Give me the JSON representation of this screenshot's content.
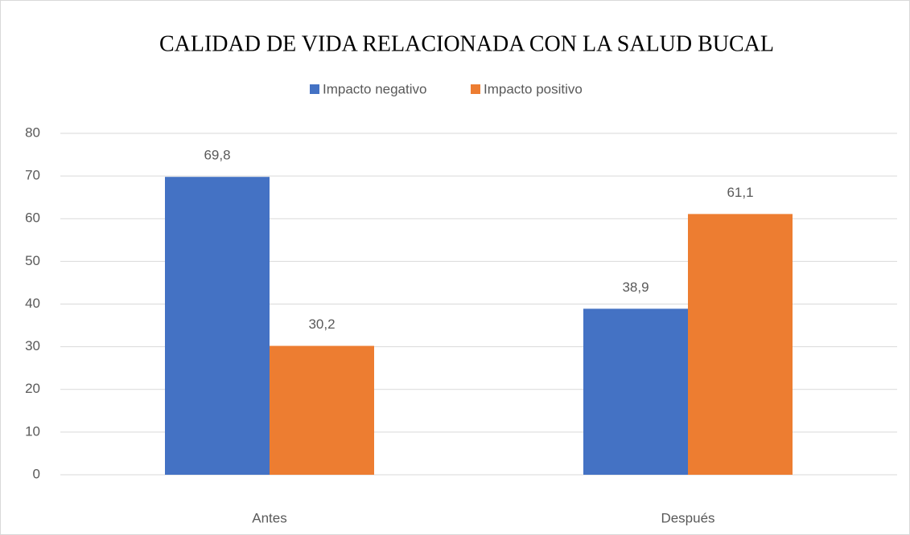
{
  "chart_data": {
    "type": "bar",
    "title": "CALIDAD DE VIDA RELACIONADA CON LA SALUD BUCAL",
    "categories": [
      "Antes",
      "Después"
    ],
    "series": [
      {
        "name": "Impacto negativo",
        "color": "#4472c4",
        "values": [
          69.8,
          38.9
        ],
        "value_labels": [
          "69,8",
          "38,9"
        ]
      },
      {
        "name": "Impacto positivo",
        "color": "#ed7d31",
        "values": [
          30.2,
          61.1
        ],
        "value_labels": [
          "30,2",
          "61,1"
        ]
      }
    ],
    "ylim": [
      0,
      80
    ],
    "yticks": [
      0,
      10,
      20,
      30,
      40,
      50,
      60,
      70,
      80
    ],
    "grid": true,
    "legend": "top"
  }
}
